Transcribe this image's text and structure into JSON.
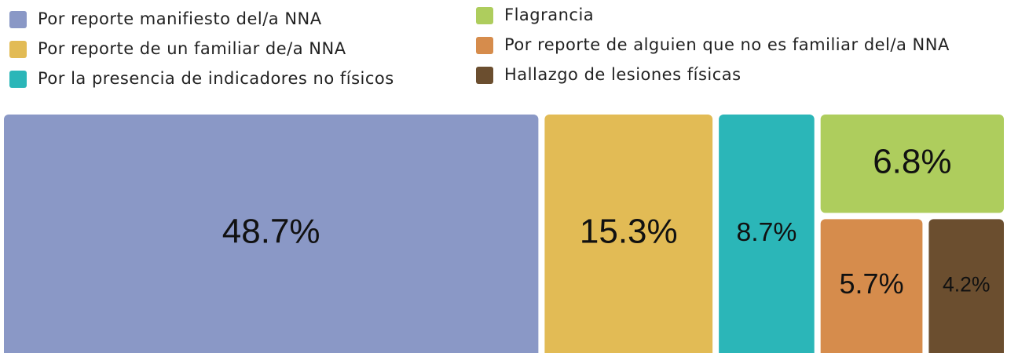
{
  "chart_data": {
    "type": "treemap",
    "series": [
      {
        "name": "Por reporte manifiesto del/a NNA",
        "color": "#8a98c6",
        "values": [
          48.7
        ],
        "value_labels": [
          "48.7%"
        ]
      },
      {
        "name": "Por reporte de un familiar de/a NNA",
        "color": "#e2bb55",
        "values": [
          15.3
        ],
        "value_labels": [
          "15.3%"
        ]
      },
      {
        "name": "Por la presencia de indicadores no físicos",
        "color": "#2bb6b8",
        "values": [
          8.7
        ],
        "value_labels": [
          "8.7%"
        ]
      },
      {
        "name": "Flagrancia",
        "color": "#aecd5d",
        "values": [
          6.8
        ],
        "value_labels": [
          "6.8%"
        ]
      },
      {
        "name": "Por reporte de alguien que no es familiar del/a NNA",
        "color": "#d68c4c",
        "values": [
          5.7
        ],
        "value_labels": [
          "5.7%"
        ]
      },
      {
        "name": "Hallazgo de lesiones físicas",
        "color": "#6b4e2f",
        "values": [
          4.2
        ],
        "value_labels": [
          "4.2%"
        ]
      }
    ]
  }
}
